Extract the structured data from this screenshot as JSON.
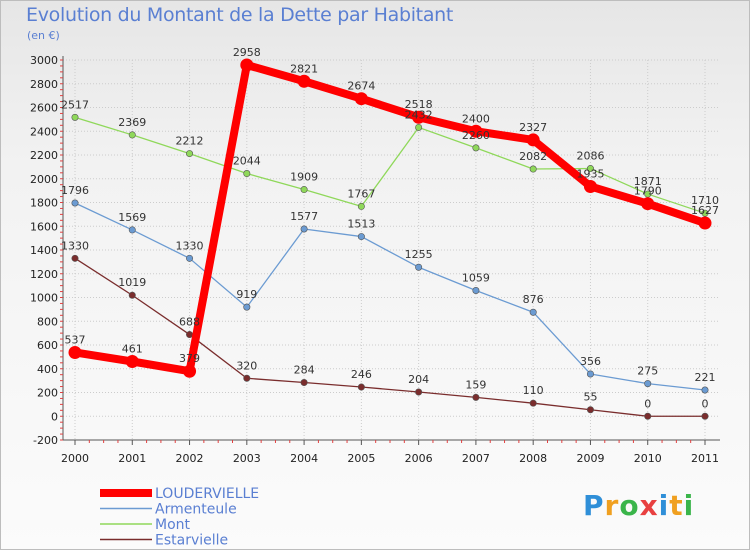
{
  "title": "Evolution du Montant de la Dette par Habitant",
  "subtitle": "(en €)",
  "logo": {
    "text": "Proxiti",
    "letters": [
      "P",
      "r",
      "o",
      "x",
      "i",
      "t",
      "i"
    ],
    "colors": [
      "#2f8fd8",
      "#f0a020",
      "#3ab54a",
      "#e84040",
      "#2f8fd8",
      "#f0a020",
      "#3ab54a"
    ]
  },
  "chart_data": {
    "type": "line",
    "title": "Evolution du Montant de la Dette par Habitant",
    "ylabel": "(en €)",
    "xlabel": "",
    "ylim": [
      -200,
      3000
    ],
    "yticks": [
      -200,
      0,
      200,
      400,
      600,
      800,
      1000,
      1200,
      1400,
      1600,
      1800,
      2000,
      2200,
      2400,
      2600,
      2800,
      3000
    ],
    "categories": [
      "2000",
      "2001",
      "2002",
      "2003",
      "2004",
      "2005",
      "2006",
      "2007",
      "2008",
      "2009",
      "2010",
      "2011"
    ],
    "series": [
      {
        "name": "LOUDERVIELLE",
        "color": "#ff0000",
        "thick": true,
        "values": [
          537,
          461,
          379,
          2958,
          2821,
          2674,
          2518,
          2400,
          2327,
          1935,
          1790,
          1627
        ]
      },
      {
        "name": "Armenteule",
        "color": "#6b9bd2",
        "thick": false,
        "values": [
          1796,
          1569,
          1330,
          919,
          1577,
          1513,
          1255,
          1059,
          876,
          356,
          275,
          221
        ]
      },
      {
        "name": "Mont",
        "color": "#8fd85a",
        "thick": false,
        "values": [
          2517,
          2369,
          2212,
          2044,
          1909,
          1767,
          2432,
          2260,
          2082,
          2086,
          1871,
          1710
        ]
      },
      {
        "name": "Estarvielle",
        "color": "#7a2d2d",
        "thick": false,
        "values": [
          1330,
          1019,
          688,
          320,
          284,
          246,
          204,
          159,
          110,
          55,
          0,
          0
        ]
      }
    ],
    "legend_position": "bottom-left"
  }
}
